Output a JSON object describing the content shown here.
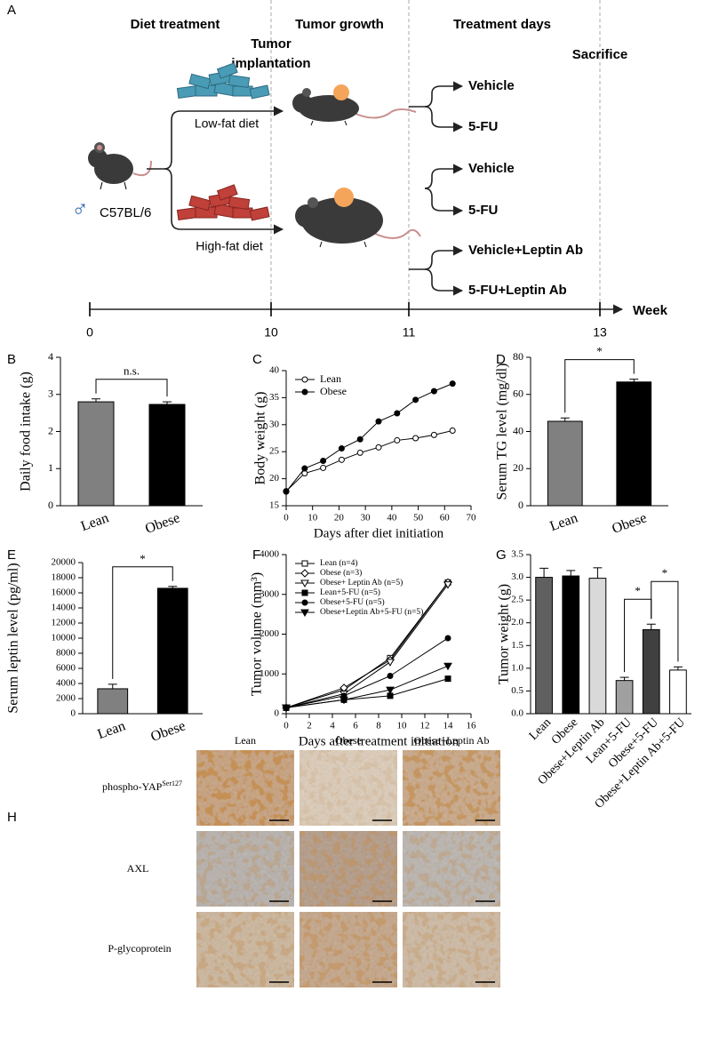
{
  "diagram": {
    "panel": "A",
    "phases": [
      "Diet treatment",
      "Tumor growth",
      "Treatment days",
      "Sacrifice"
    ],
    "implantation": [
      "Tumor",
      "implantation"
    ],
    "strain": "C57BL/6",
    "diets": [
      "Low-fat diet",
      "High-fat diet"
    ],
    "treatments": [
      [
        "Vehicle",
        "5-FU"
      ],
      [
        "Vehicle",
        "5-FU"
      ],
      [
        "Vehicle+Leptin Ab",
        "5-FU+Leptin Ab"
      ]
    ],
    "timeline": {
      "ticks": [
        "0",
        "10",
        "11",
        "13"
      ],
      "unit": "Week"
    }
  },
  "chart_data": [
    {
      "panel": "B",
      "type": "bar",
      "ylabel": "Daily food intake (g)",
      "categories": [
        "Lean",
        "Obese"
      ],
      "values": [
        2.8,
        2.73
      ],
      "errors": [
        0.08,
        0.07
      ],
      "colors": [
        "#808080",
        "#000000"
      ],
      "ylim": [
        0,
        4
      ],
      "yticks": [
        0,
        1,
        2,
        3,
        4
      ],
      "annotations": [
        "n.s."
      ]
    },
    {
      "panel": "C",
      "type": "line",
      "xlabel": "Days after diet initiation",
      "ylabel": "Body weight (g)",
      "x": [
        0,
        7,
        14,
        21,
        28,
        35,
        42,
        49,
        56,
        63
      ],
      "series": [
        {
          "name": "Lean",
          "color": "#000000",
          "marker": "open-circle",
          "values": [
            17.7,
            21.0,
            22.0,
            23.5,
            24.8,
            25.8,
            27.1,
            27.5,
            28.1,
            28.9
          ]
        },
        {
          "name": "Obese",
          "color": "#000000",
          "marker": "filled-circle",
          "values": [
            17.6,
            21.9,
            23.3,
            25.6,
            27.3,
            30.6,
            32.1,
            34.6,
            36.2,
            37.6
          ]
        }
      ],
      "xlim": [
        0,
        70
      ],
      "xticks": [
        0,
        10,
        20,
        30,
        40,
        50,
        60,
        70
      ],
      "ylim": [
        15,
        40
      ],
      "yticks": [
        15,
        20,
        25,
        30,
        35,
        40
      ],
      "legend": "upper left"
    },
    {
      "panel": "D",
      "type": "bar",
      "ylabel": "Serum TG level (mg/dl)",
      "categories": [
        "Lean",
        "Obese"
      ],
      "values": [
        45.5,
        66.7
      ],
      "errors": [
        1.8,
        1.5
      ],
      "colors": [
        "#808080",
        "#000000"
      ],
      "ylim": [
        0,
        80
      ],
      "yticks": [
        0,
        20,
        40,
        60,
        80
      ],
      "annotations": [
        "*"
      ]
    },
    {
      "panel": "E",
      "type": "bar",
      "ylabel": "Serum leptin level (pg/ml)",
      "categories": [
        "Lean",
        "Obese"
      ],
      "values": [
        3300,
        16600
      ],
      "errors": [
        600,
        250
      ],
      "colors": [
        "#808080",
        "#000000"
      ],
      "ylim": [
        0,
        20000
      ],
      "yticks": [
        0,
        2000,
        4000,
        6000,
        8000,
        10000,
        12000,
        14000,
        16000,
        18000,
        20000
      ],
      "annotations": [
        "*"
      ]
    },
    {
      "panel": "F",
      "type": "line",
      "xlabel": "Days after treatment initiation",
      "ylabel": "Tumor volume (mm³)",
      "x": [
        0,
        5,
        9,
        14
      ],
      "series": [
        {
          "name": "Lean (n=4)",
          "color": "#000000",
          "marker": "open-square",
          "values": [
            150,
            600,
            1400,
            3300
          ]
        },
        {
          "name": "Obese (n=3)",
          "color": "#000000",
          "marker": "open-diamond",
          "values": [
            150,
            650,
            1350,
            3300
          ]
        },
        {
          "name": "Obese+ Leptin Ab (n=5)",
          "color": "#000000",
          "marker": "open-triangle-down",
          "values": [
            150,
            500,
            1300,
            3250
          ]
        },
        {
          "name": "Lean+5-FU (n=5)",
          "color": "#000000",
          "marker": "filled-square",
          "values": [
            150,
            350,
            450,
            880
          ]
        },
        {
          "name": "Obese+5-FU (n=5)",
          "color": "#000000",
          "marker": "filled-circle",
          "values": [
            150,
            450,
            950,
            1900
          ]
        },
        {
          "name": "Obese+Leptin Ab+5-FU (n=5)",
          "color": "#000000",
          "marker": "filled-triangle-down",
          "values": [
            150,
            350,
            600,
            1200
          ]
        }
      ],
      "xlim": [
        0,
        16
      ],
      "xticks": [
        0,
        2,
        4,
        6,
        8,
        10,
        12,
        14,
        16
      ],
      "ylim": [
        0,
        4000
      ],
      "yticks": [
        0,
        1000,
        2000,
        3000,
        4000
      ],
      "legend": "upper left"
    },
    {
      "panel": "G",
      "type": "bar",
      "ylabel": "Tumor weight (g)",
      "categories": [
        "Lean",
        "Obese",
        "Obese+Leptin Ab",
        "Lean+5-FU",
        "Obese+5-FU",
        "Obese+Leptin Ab+5-FU"
      ],
      "values": [
        3.0,
        3.03,
        2.98,
        0.73,
        1.85,
        0.96
      ],
      "errors": [
        0.2,
        0.12,
        0.23,
        0.07,
        0.12,
        0.07
      ],
      "colors": [
        "#606060",
        "#000000",
        "#d9d9d9",
        "#a0a0a0",
        "#404040",
        "#ffffff"
      ],
      "ylim": [
        0,
        3.5
      ],
      "yticks": [
        {
          "value": 0,
          "label": "0.0"
        },
        0.5,
        {
          "value": 1,
          "label": "1.0"
        },
        1.5,
        {
          "value": 2,
          "label": "2.0"
        },
        2.5,
        {
          "value": 3,
          "label": "3.0"
        },
        3.5
      ],
      "annotations": [
        "*",
        "*"
      ]
    }
  ],
  "image_grid": {
    "panel": "H",
    "columns": [
      "Lean",
      "Obese",
      "Obese+Leptin Ab"
    ],
    "rows": [
      {
        "label": "phospho-YAP",
        "superscript": "Ser127"
      },
      {
        "label": "AXL"
      },
      {
        "label": "P-glycoprotein"
      }
    ]
  }
}
